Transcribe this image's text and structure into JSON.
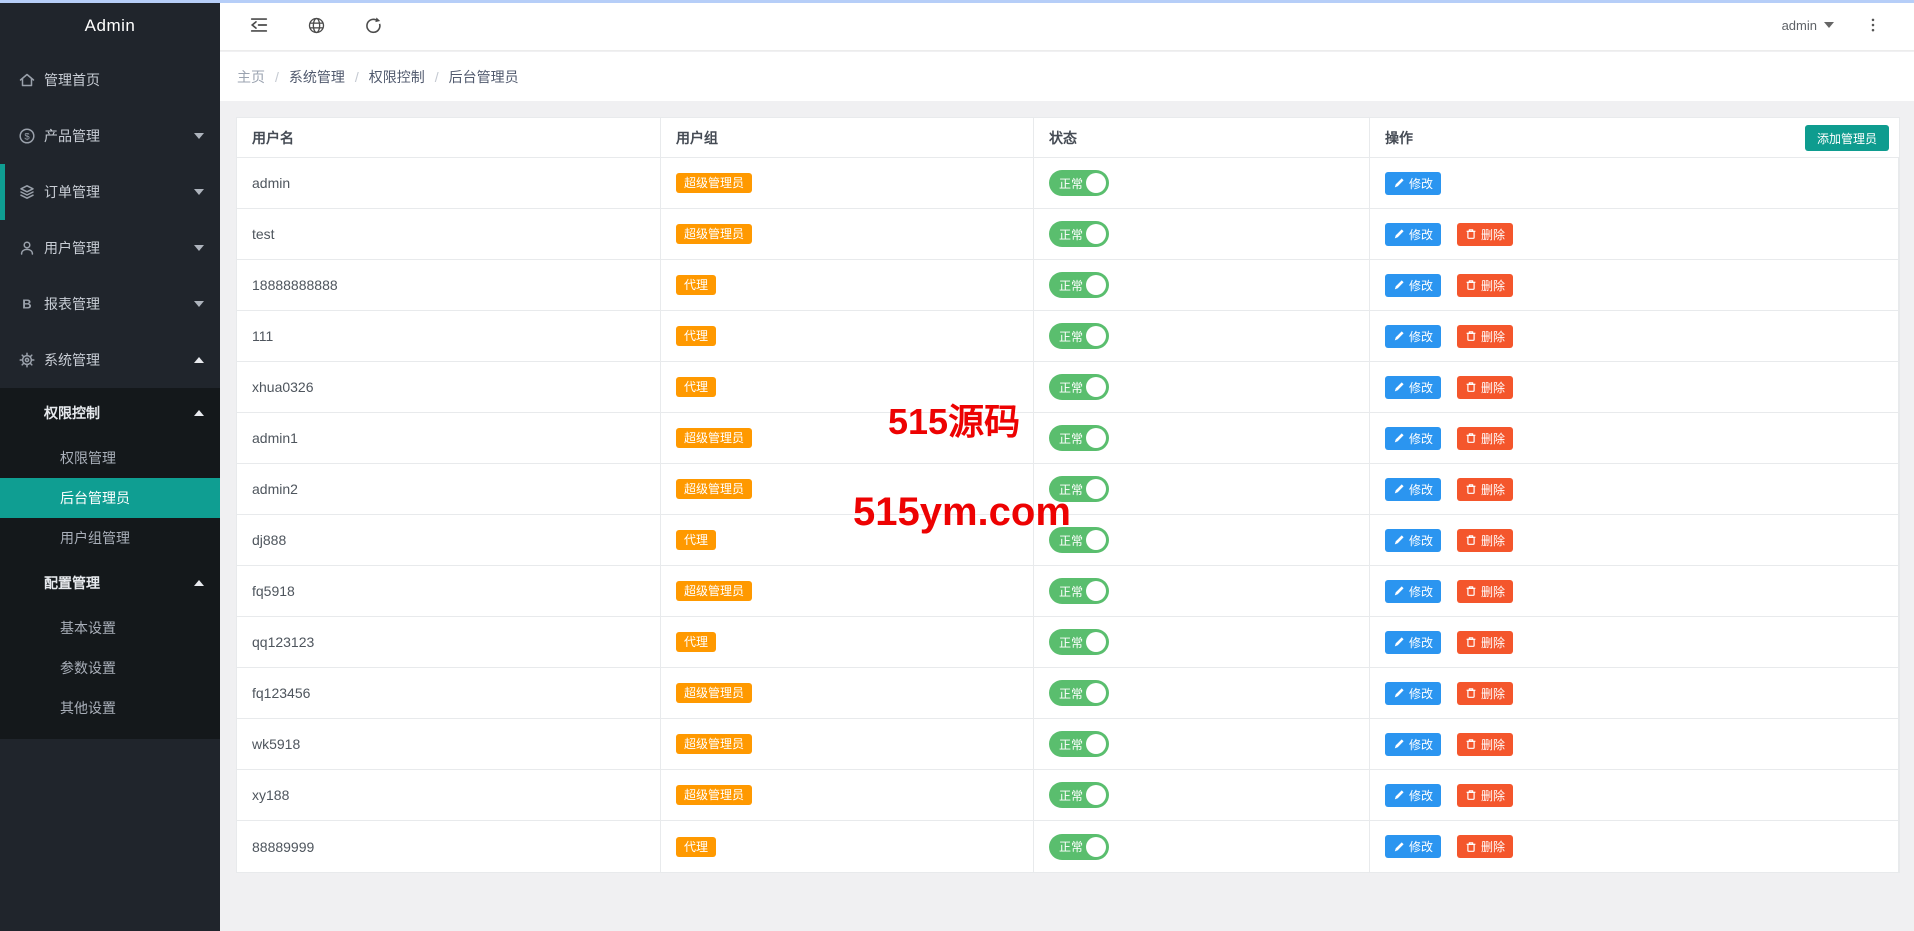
{
  "app": {
    "title": "Admin"
  },
  "topbar": {
    "icons": [
      "menu-fold-icon",
      "globe-icon",
      "refresh-icon"
    ],
    "user_label": "admin",
    "more_icon": "kebab-menu-icon"
  },
  "breadcrumb": {
    "items": [
      "主页",
      "系统管理",
      "权限控制",
      "后台管理员"
    ],
    "separator": "/"
  },
  "sidebar": {
    "items": [
      {
        "key": "home",
        "label": "管理首页",
        "icon": "home-icon",
        "chevron": null
      },
      {
        "key": "products",
        "label": "产品管理",
        "icon": "product-icon",
        "chevron": "down"
      },
      {
        "key": "orders",
        "label": "订单管理",
        "icon": "orders-icon",
        "chevron": "down",
        "indicator": true
      },
      {
        "key": "users",
        "label": "用户管理",
        "icon": "user-icon",
        "chevron": "down"
      },
      {
        "key": "reports",
        "label": "报表管理",
        "icon": "report-icon",
        "chevron": "down"
      },
      {
        "key": "system",
        "label": "系统管理",
        "icon": "gear-icon",
        "chevron": "up",
        "expanded": true
      }
    ],
    "groups": [
      {
        "key": "permission-control",
        "label": "权限控制",
        "chevron": "up",
        "children": [
          {
            "key": "permission-management",
            "label": "权限管理",
            "active": false
          },
          {
            "key": "admin-list",
            "label": "后台管理员",
            "active": true
          },
          {
            "key": "user-group-management",
            "label": "用户组管理",
            "active": false
          }
        ]
      },
      {
        "key": "config-management",
        "label": "配置管理",
        "chevron": "up",
        "children": [
          {
            "key": "basic-settings",
            "label": "基本设置",
            "active": false
          },
          {
            "key": "param-settings",
            "label": "参数设置",
            "active": false
          },
          {
            "key": "other-settings",
            "label": "其他设置",
            "active": false
          }
        ]
      }
    ]
  },
  "table": {
    "headers": [
      "用户名",
      "用户组",
      "状态",
      "操作"
    ],
    "add_button_label": "添加管理员",
    "action_labels": {
      "edit": "修改",
      "delete": "删除"
    },
    "status_on_label": "正常",
    "rows": [
      {
        "username": "admin",
        "group": "超级管理员",
        "status": "正常",
        "actions": [
          "edit"
        ]
      },
      {
        "username": "test",
        "group": "超级管理员",
        "status": "正常",
        "actions": [
          "edit",
          "delete"
        ]
      },
      {
        "username": "18888888888",
        "group": "代理",
        "status": "正常",
        "actions": [
          "edit",
          "delete"
        ]
      },
      {
        "username": "111",
        "group": "代理",
        "status": "正常",
        "actions": [
          "edit",
          "delete"
        ]
      },
      {
        "username": "xhua0326",
        "group": "代理",
        "status": "正常",
        "actions": [
          "edit",
          "delete"
        ]
      },
      {
        "username": "admin1",
        "group": "超级管理员",
        "status": "正常",
        "actions": [
          "edit",
          "delete"
        ]
      },
      {
        "username": "admin2",
        "group": "超级管理员",
        "status": "正常",
        "actions": [
          "edit",
          "delete"
        ]
      },
      {
        "username": "dj888",
        "group": "代理",
        "status": "正常",
        "actions": [
          "edit",
          "delete"
        ]
      },
      {
        "username": "fq5918",
        "group": "超级管理员",
        "status": "正常",
        "actions": [
          "edit",
          "delete"
        ]
      },
      {
        "username": "qq123123",
        "group": "代理",
        "status": "正常",
        "actions": [
          "edit",
          "delete"
        ]
      },
      {
        "username": "fq123456",
        "group": "超级管理员",
        "status": "正常",
        "actions": [
          "edit",
          "delete"
        ]
      },
      {
        "username": "wk5918",
        "group": "超级管理员",
        "status": "正常",
        "actions": [
          "edit",
          "delete"
        ]
      },
      {
        "username": "xy188",
        "group": "超级管理员",
        "status": "正常",
        "actions": [
          "edit",
          "delete"
        ]
      },
      {
        "username": "88889999",
        "group": "代理",
        "status": "正常",
        "actions": [
          "edit",
          "delete"
        ]
      }
    ]
  },
  "watermark": {
    "line1": "515源码",
    "line2": "515ym.com"
  },
  "colors": {
    "sidebar_bg": "#20252c",
    "submenu_bg": "#14181b",
    "active_teal": "#0f9e92",
    "badge_orange": "#ff9900",
    "toggle_green": "#5abe6e",
    "edit_blue": "#2b95f0",
    "delete_red": "#f4562c",
    "add_teal": "#0e9c8f",
    "watermark_red": "#ed0202",
    "topline_blue": "#b6cef8"
  }
}
